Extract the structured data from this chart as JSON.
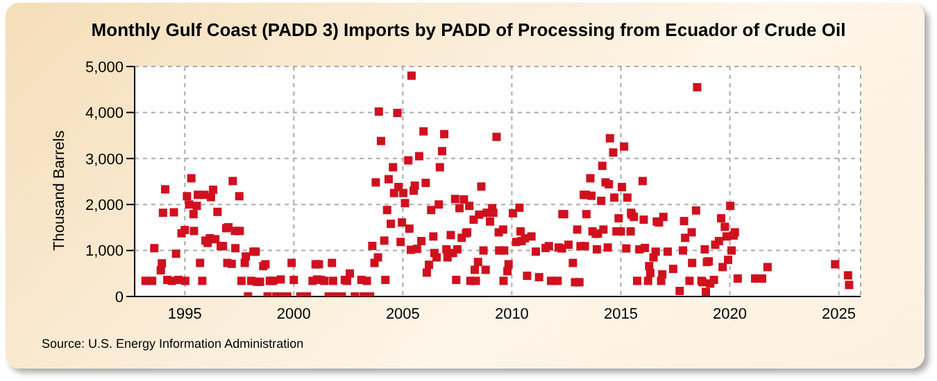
{
  "chart_data": {
    "type": "scatter",
    "title": "Monthly Gulf Coast (PADD 3) Imports by PADD of Processing from Ecuador of Crude Oil",
    "ylabel": "Thousand Barrels",
    "annotations": [
      "Source: U.S. Energy Information Administration"
    ],
    "x": [
      1993.2,
      1993.5,
      1993.6,
      1993.9,
      1993.95,
      1994.0,
      1994.1,
      1994.2,
      1994.4,
      1994.5,
      1994.6,
      1994.7,
      1994.85,
      1995.0,
      1995.02,
      1995.1,
      1995.2,
      1995.3,
      1995.4,
      1995.42,
      1995.55,
      1995.6,
      1995.7,
      1995.8,
      1995.9,
      1995.95,
      1996.05,
      1996.15,
      1996.2,
      1996.3,
      1996.4,
      1996.5,
      1996.65,
      1996.75,
      1996.9,
      1996.95,
      1997.0,
      1997.15,
      1997.2,
      1997.3,
      1997.32,
      1997.5,
      1997.52,
      1997.6,
      1997.75,
      1997.8,
      1997.9,
      1998.05,
      1998.15,
      1998.25,
      1998.3,
      1998.45,
      1998.6,
      1998.7,
      1998.8,
      1998.9,
      1999.05,
      1999.2,
      1999.4,
      1999.5,
      1999.7,
      1999.9,
      2000.0,
      2000.3,
      2000.6,
      2000.86,
      2001.0,
      2001.07,
      2001.15,
      2001.25,
      2001.4,
      2001.6,
      2001.75,
      2001.8,
      2001.95,
      2002.2,
      2002.34,
      2002.44,
      2002.57,
      2002.8,
      2003.1,
      2003.2,
      2003.35,
      2003.5,
      2003.6,
      2003.7,
      2003.76,
      2003.86,
      2003.9,
      2004.0,
      2004.15,
      2004.2,
      2004.28,
      2004.35,
      2004.45,
      2004.55,
      2004.6,
      2004.75,
      2004.8,
      2004.9,
      2004.96,
      2005.02,
      2005.1,
      2005.25,
      2005.3,
      2005.37,
      2005.4,
      2005.5,
      2005.55,
      2005.65,
      2005.75,
      2005.85,
      2005.95,
      2006.05,
      2006.1,
      2006.2,
      2006.3,
      2006.4,
      2006.45,
      2006.55,
      2006.65,
      2006.7,
      2006.8,
      2006.9,
      2007.0,
      2007.05,
      2007.2,
      2007.3,
      2007.4,
      2007.45,
      2007.5,
      2007.6,
      2007.7,
      2007.8,
      2007.9,
      2007.95,
      2008.05,
      2008.1,
      2008.25,
      2008.3,
      2008.35,
      2008.45,
      2008.5,
      2008.6,
      2008.7,
      2008.8,
      2008.85,
      2008.95,
      2009.0,
      2009.1,
      2009.15,
      2009.3,
      2009.4,
      2009.42,
      2009.6,
      2009.65,
      2009.62,
      2009.8,
      2009.85,
      2010.05,
      2010.2,
      2010.35,
      2010.4,
      2010.45,
      2010.6,
      2010.7,
      2010.9,
      2011.1,
      2011.25,
      2011.55,
      2011.7,
      2011.8,
      2012.1,
      2012.15,
      2012.3,
      2012.32,
      2012.4,
      2012.6,
      2012.8,
      2012.9,
      2013.0,
      2013.1,
      2013.15,
      2013.3,
      2013.35,
      2013.4,
      2013.42,
      2013.6,
      2013.65,
      2013.7,
      2013.85,
      2013.9,
      2013.95,
      2014.1,
      2014.15,
      2014.2,
      2014.3,
      2014.4,
      2014.45,
      2014.5,
      2014.65,
      2014.7,
      2014.8,
      2014.9,
      2015.0,
      2015.05,
      2015.15,
      2015.25,
      2015.3,
      2015.45,
      2015.47,
      2015.5,
      2015.6,
      2015.75,
      2015.85,
      2016.0,
      2016.05,
      2016.1,
      2016.25,
      2016.3,
      2016.35,
      2016.5,
      2016.6,
      2016.65,
      2016.75,
      2016.85,
      2016.9,
      2016.95,
      2017.15,
      2017.4,
      2017.7,
      2017.85,
      2017.9,
      2017.95,
      2018.15,
      2018.25,
      2018.27,
      2018.45,
      2018.5,
      2018.7,
      2018.75,
      2018.85,
      2018.9,
      2018.95,
      2019.03,
      2019.1,
      2019.27,
      2019.33,
      2019.5,
      2019.6,
      2019.67,
      2019.77,
      2019.85,
      2019.92,
      2020.02,
      2020.08,
      2020.17,
      2020.23,
      2020.36,
      2021.16,
      2021.48,
      2021.73,
      2024.83,
      2025.42,
      2025.47
    ],
    "values": [
      340,
      340,
      1050,
      570,
      720,
      1820,
      2330,
      360,
      340,
      1830,
      930,
      360,
      1375,
      1445,
      340,
      2180,
      2000,
      2570,
      1790,
      1425,
      1970,
      2210,
      730,
      340,
      2210,
      1215,
      1165,
      1265,
      2160,
      2320,
      1245,
      1840,
      1095,
      1095,
      1485,
      730,
      1505,
      710,
      2510,
      1425,
      1050,
      2180,
      1425,
      340,
      730,
      870,
      0,
      340,
      975,
      975,
      320,
      320,
      660,
      700,
      0,
      340,
      340,
      0,
      370,
      0,
      0,
      730,
      360,
      0,
      0,
      340,
      700,
      370,
      700,
      360,
      340,
      0,
      730,
      340,
      0,
      0,
      360,
      340,
      500,
      0,
      360,
      0,
      340,
      0,
      1100,
      730,
      2480,
      850,
      4020,
      3380,
      1215,
      360,
      1880,
      2550,
      1580,
      2810,
      2250,
      3990,
      2380,
      1185,
      1610,
      2250,
      2030,
      2960,
      1475,
      1015,
      4800,
      2300,
      2410,
      1035,
      3050,
      1205,
      3590,
      2470,
      520,
      690,
      1880,
      1305,
      945,
      850,
      2000,
      2810,
      3160,
      3530,
      1025,
      850,
      1335,
      945,
      2120,
      360,
      1025,
      1920,
      1275,
      2110,
      1375,
      1395,
      1970,
      340,
      1670,
      580,
      340,
      750,
      1780,
      2390,
      1000,
      580,
      1820,
      1820,
      1630,
      1920,
      1820,
      3470,
      1395,
      1000,
      1455,
      1000,
      340,
      550,
      700,
      1810,
      1185,
      1930,
      1415,
      1205,
      1265,
      450,
      1305,
      975,
      420,
      1055,
      1095,
      340,
      340,
      1065,
      1045,
      1790,
      1790,
      1125,
      730,
      310,
      1455,
      310,
      1095,
      2210,
      1095,
      2210,
      1790,
      2570,
      2190,
      1415,
      1365,
      1025,
      1365,
      2080,
      2840,
      1455,
      2480,
      1065,
      2440,
      3440,
      3130,
      2150,
      1415,
      1700,
      1415,
      2380,
      3260,
      1045,
      2150,
      1415,
      1820,
      1780,
      1730,
      340,
      1025,
      2510,
      1670,
      1055,
      340,
      660,
      510,
      850,
      975,
      1630,
      1610,
      340,
      480,
      1730,
      975,
      600,
      120,
      1000,
      1640,
      1275,
      340,
      1395,
      730,
      1870,
      4550,
      340,
      310,
      1025,
      100,
      750,
      765,
      280,
      360,
      1125,
      1205,
      1700,
      640,
      1515,
      1305,
      795,
      1970,
      1000,
      1325,
      1395,
      390,
      390,
      390,
      640,
      700,
      460,
      250
    ],
    "color": "#d0101e",
    "marker": "square",
    "grid": true,
    "xlim": [
      1992.7,
      2026
    ],
    "xticks": [
      1995,
      2000,
      2005,
      2010,
      2015,
      2020,
      2025
    ],
    "ylim": [
      0,
      5000
    ],
    "yticks": [
      0,
      {
        "value": 1000,
        "label": "1,000"
      },
      {
        "value": 2000,
        "label": "2,000"
      },
      {
        "value": 3000,
        "label": "3,000"
      },
      {
        "value": 4000,
        "label": "4,000"
      },
      {
        "value": 5000,
        "label": "5,000"
      }
    ]
  }
}
